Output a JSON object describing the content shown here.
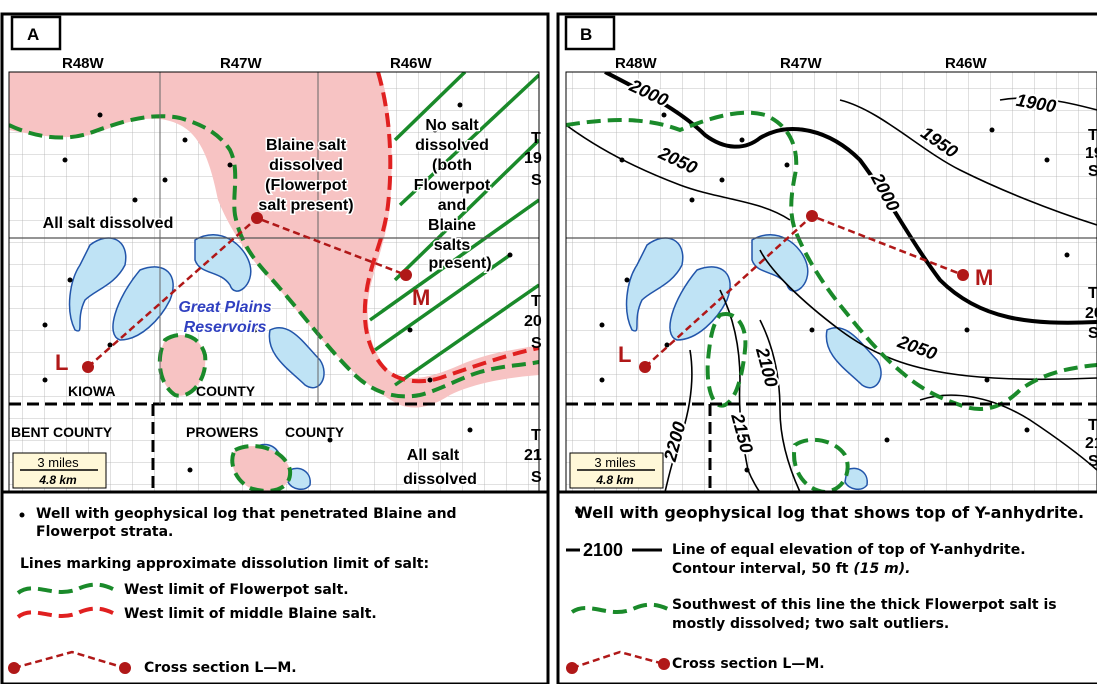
{
  "panel_a": {
    "letter": "A",
    "ranges": [
      "R48W",
      "R47W",
      "R46W"
    ],
    "t19": [
      "T",
      "19",
      "S"
    ],
    "t20": [
      "T",
      "20",
      "S"
    ],
    "t21": [
      "T",
      "21",
      "S"
    ],
    "blaine_label": [
      "Blaine salt",
      "dissolved",
      "(Flowerpot",
      "salt present)"
    ],
    "no_salt_label": [
      "No salt",
      "dissolved",
      "(both",
      "Flowerpot",
      "and",
      "Blaine",
      "salts",
      "present)"
    ],
    "all_salt_dissolved": "All salt dissolved",
    "all_salt_dissolved_se": [
      "All salt",
      "dissolved"
    ],
    "reservoirs": [
      "Great Plains",
      "Reservoirs"
    ],
    "kiowa": "KIOWA",
    "county1": "COUNTY",
    "bent": "BENT COUNTY",
    "prowers": "PROWERS",
    "county2": "COUNTY",
    "point_l": "L",
    "point_m": "M",
    "scale": [
      "3 miles",
      "4.8 km"
    ],
    "legend": {
      "well": "Well with geophysical log that penetrated Blaine and",
      "well2": "Flowerpot strata.",
      "lines_header": "Lines marking approximate dissolution limit of salt:",
      "flowerpot": "West limit of Flowerpot salt.",
      "blaine": "West limit of middle Blaine salt.",
      "xsec": "Cross section L—M."
    }
  },
  "panel_b": {
    "letter": "B",
    "ranges": [
      "R48W",
      "R47W",
      "R46W"
    ],
    "t19": [
      "T",
      "19",
      "S"
    ],
    "t20": [
      "T",
      "20",
      "S"
    ],
    "t21": [
      "T",
      "21",
      "S"
    ],
    "contours": [
      "2000",
      "2050",
      "1900",
      "1950",
      "2000",
      "2050",
      "2100",
      "2150",
      "2200"
    ],
    "point_l": "L",
    "point_m": "M",
    "scale": [
      "3 miles",
      "4.8 km"
    ],
    "legend": {
      "well": "Well with geophysical log that shows top of Y-anhydrite.",
      "contour_sample": "2100",
      "contour_desc": "Line of equal elevation of top of Y-anhydrite.",
      "contour_desc2": "Contour interval, 50 ft",
      "contour_desc3": "(15 m).",
      "flowerpot": "Southwest of this line the thick Flowerpot salt is",
      "flowerpot2": "mostly dissolved; two salt outliers.",
      "xsec": "Cross section  L—M."
    }
  },
  "colors": {
    "salt_pink": "#f7c3c3",
    "green": "#1a8a2a",
    "red": "#e02020",
    "water": "#bfe3f5",
    "xsec": "#b01818"
  }
}
